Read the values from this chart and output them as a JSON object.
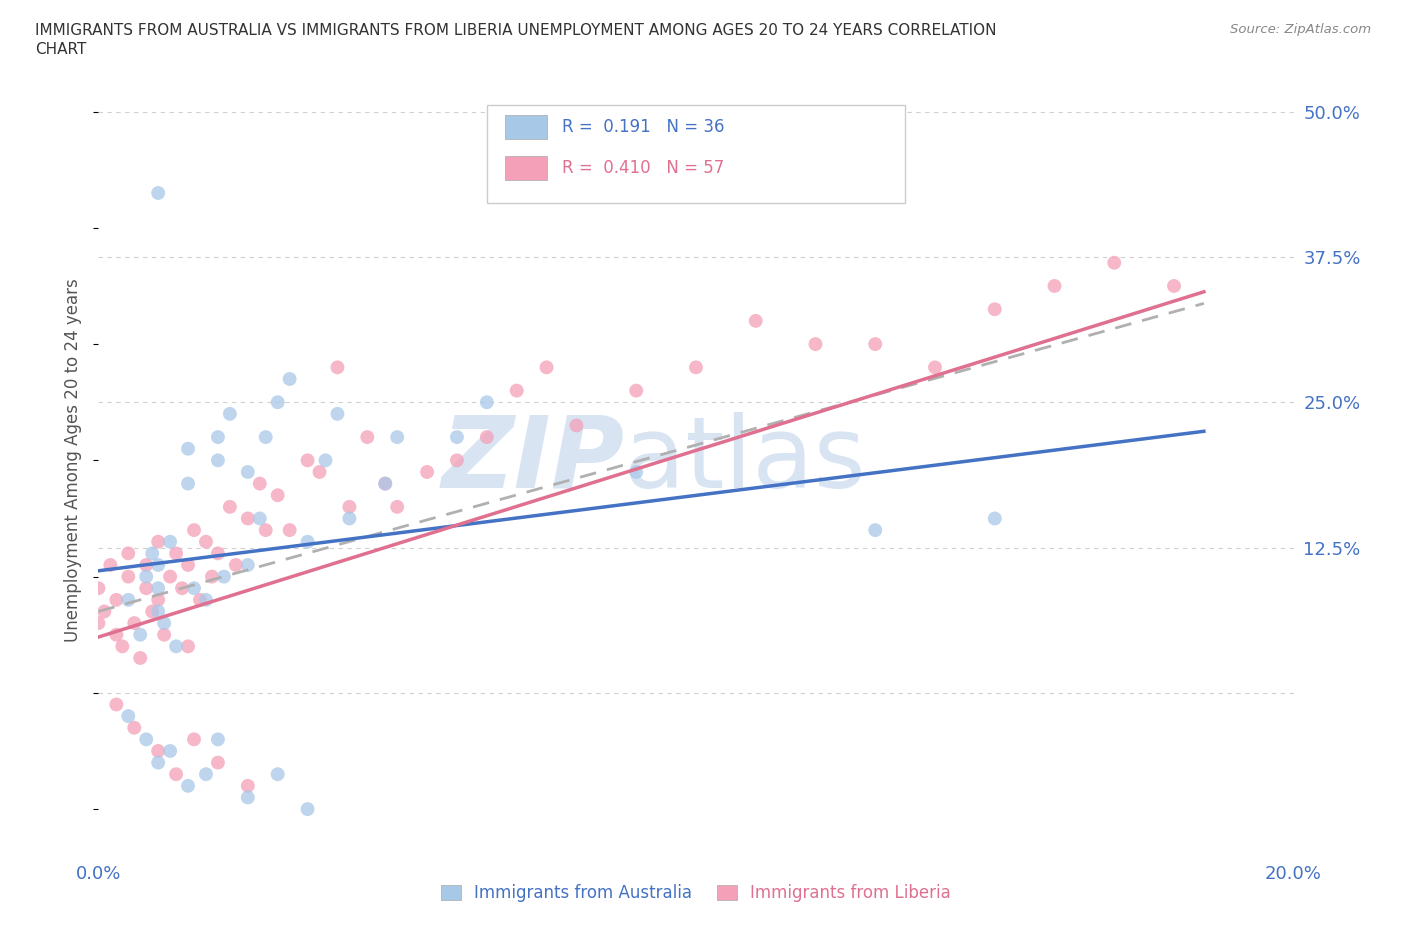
{
  "title_line1": "IMMIGRANTS FROM AUSTRALIA VS IMMIGRANTS FROM LIBERIA UNEMPLOYMENT AMONG AGES 20 TO 24 YEARS CORRELATION",
  "title_line2": "CHART",
  "source_text": "Source: ZipAtlas.com",
  "ylabel": "Unemployment Among Ages 20 to 24 years",
  "xlim": [
    0.0,
    0.2
  ],
  "ylim": [
    -0.14,
    0.54
  ],
  "yticks": [
    0.0,
    0.125,
    0.25,
    0.375,
    0.5
  ],
  "ytick_labels": [
    "",
    "12.5%",
    "25.0%",
    "37.5%",
    "50.0%"
  ],
  "xticks": [
    0.0,
    0.05,
    0.1,
    0.15,
    0.2
  ],
  "xtick_labels_left": "0.0%",
  "xtick_labels_right": "20.0%",
  "color_australia": "#a8c8e8",
  "color_liberia": "#f4a0b8",
  "color_blue": "#4472c4",
  "color_pink": "#e07090",
  "color_dashed": "#b0b0b0",
  "background_color": "#ffffff",
  "grid_color": "#d0d0d0",
  "aus_line_x0": 0.0,
  "aus_line_x1": 0.185,
  "aus_line_y0": 0.105,
  "aus_line_y1": 0.225,
  "lib_line_x0": 0.0,
  "lib_line_x1": 0.185,
  "lib_line_y0": 0.048,
  "lib_line_y1": 0.345,
  "dash_line_x0": 0.0,
  "dash_line_x1": 0.185,
  "dash_line_y0": 0.07,
  "dash_line_y1": 0.335
}
